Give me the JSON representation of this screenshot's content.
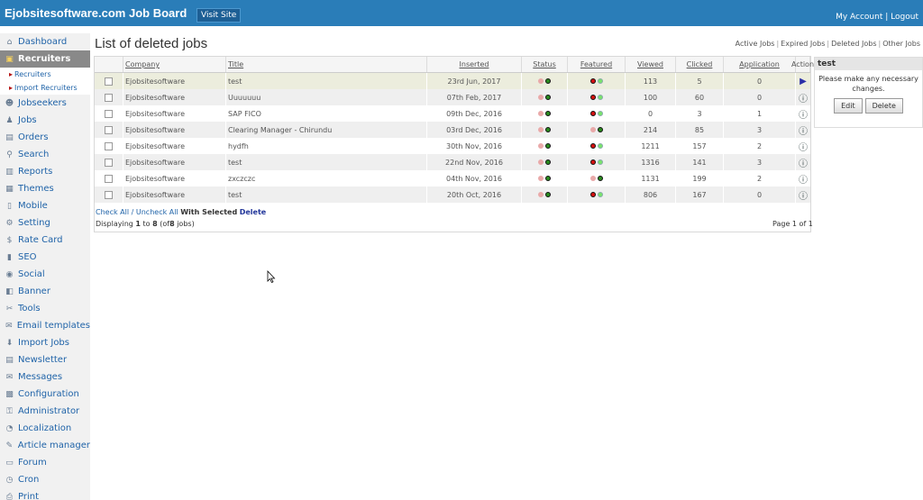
{
  "header": {
    "brand": "Ejobsitesoftware.com Job Board",
    "visit_site": "Visit Site",
    "my_account": "My Account",
    "separator": "|",
    "logout": "Logout"
  },
  "sidebar": {
    "items": [
      {
        "label": "Dashboard",
        "icon": "home-icon",
        "glyph": "⌂"
      },
      {
        "label": "Recruiters",
        "icon": "recruiter-icon",
        "glyph": "▣",
        "active": true
      },
      {
        "label": "Jobseekers",
        "icon": "jobseekers-icon",
        "glyph": "☻"
      },
      {
        "label": "Jobs",
        "icon": "jobs-icon",
        "glyph": "♟"
      },
      {
        "label": "Orders",
        "icon": "orders-icon",
        "glyph": "▤"
      },
      {
        "label": "Search",
        "icon": "search-icon",
        "glyph": "⚲"
      },
      {
        "label": "Reports",
        "icon": "reports-icon",
        "glyph": "▥"
      },
      {
        "label": "Themes",
        "icon": "themes-icon",
        "glyph": "▦"
      },
      {
        "label": "Mobile",
        "icon": "mobile-icon",
        "glyph": "▯"
      },
      {
        "label": "Setting",
        "icon": "setting-icon",
        "glyph": "⚙"
      },
      {
        "label": "Rate Card",
        "icon": "dollar-icon",
        "glyph": "$"
      },
      {
        "label": "SEO",
        "icon": "seo-icon",
        "glyph": "▮"
      },
      {
        "label": "Social",
        "icon": "social-icon",
        "glyph": "◉"
      },
      {
        "label": "Banner",
        "icon": "banner-icon",
        "glyph": "◧"
      },
      {
        "label": "Tools",
        "icon": "tools-icon",
        "glyph": "✂"
      },
      {
        "label": "Email templates",
        "icon": "email-icon",
        "glyph": "✉"
      },
      {
        "label": "Import Jobs",
        "icon": "import-icon",
        "glyph": "⬇"
      },
      {
        "label": "Newsletter",
        "icon": "newsletter-icon",
        "glyph": "▤"
      },
      {
        "label": "Messages",
        "icon": "messages-icon",
        "glyph": "✉"
      },
      {
        "label": "Configuration",
        "icon": "configuration-icon",
        "glyph": "▩"
      },
      {
        "label": "Administrator",
        "icon": "administrator-icon",
        "glyph": "⚿"
      },
      {
        "label": "Localization",
        "icon": "localization-icon",
        "glyph": "◔"
      },
      {
        "label": "Article manager",
        "icon": "article-icon",
        "glyph": "✎"
      },
      {
        "label": "Forum",
        "icon": "forum-icon",
        "glyph": "▭"
      },
      {
        "label": "Cron",
        "icon": "clock-icon",
        "glyph": "◷"
      },
      {
        "label": "Print",
        "icon": "print-icon",
        "glyph": "⎙"
      }
    ],
    "subitems": [
      "Recruiters",
      "Import Recruiters"
    ]
  },
  "page": {
    "title": "List of deleted jobs",
    "links": [
      "Active Jobs",
      "Expired Jobs",
      "Deleted Jobs",
      "Other Jobs"
    ]
  },
  "table": {
    "headers": [
      "Company",
      "Title",
      "Inserted",
      "Status",
      "Featured",
      "Viewed",
      "Clicked",
      "Application",
      "Action"
    ],
    "rows": [
      {
        "company": "Ejobsitesoftware",
        "title": "test",
        "inserted": "23rd Jun, 2017",
        "viewed": "113",
        "clicked": "5",
        "application": "0",
        "status_on": true,
        "featured_on": false,
        "action": "play"
      },
      {
        "company": "Ejobsitesoftware",
        "title": "Uuuuuuu",
        "inserted": "07th Feb, 2017",
        "viewed": "100",
        "clicked": "60",
        "application": "0",
        "status_on": true,
        "featured_on": false,
        "action": "info"
      },
      {
        "company": "Ejobsitesoftware",
        "title": "SAP FICO",
        "inserted": "09th Dec, 2016",
        "viewed": "0",
        "clicked": "3",
        "application": "1",
        "status_on": true,
        "featured_on": false,
        "action": "info"
      },
      {
        "company": "Ejobsitesoftware",
        "title": "Clearing Manager - Chirundu",
        "inserted": "03rd Dec, 2016",
        "viewed": "214",
        "clicked": "85",
        "application": "3",
        "status_on": true,
        "featured_on": true,
        "action": "info"
      },
      {
        "company": "Ejobsitesoftware",
        "title": "hydfh",
        "inserted": "30th Nov, 2016",
        "viewed": "1211",
        "clicked": "157",
        "application": "2",
        "status_on": true,
        "featured_on": false,
        "action": "info"
      },
      {
        "company": "Ejobsitesoftware",
        "title": "test",
        "inserted": "22nd Nov, 2016",
        "viewed": "1316",
        "clicked": "141",
        "application": "3",
        "status_on": true,
        "featured_on": false,
        "action": "info"
      },
      {
        "company": "Ejobsitesoftware",
        "title": "zxczczc",
        "inserted": "04th Nov, 2016",
        "viewed": "1131",
        "clicked": "199",
        "application": "2",
        "status_on": true,
        "featured_on": true,
        "action": "info"
      },
      {
        "company": "Ejobsitesoftware",
        "title": "test",
        "inserted": "20th Oct, 2016",
        "viewed": "806",
        "clicked": "167",
        "application": "0",
        "status_on": true,
        "featured_on": false,
        "action": "info"
      }
    ]
  },
  "footer": {
    "check_all": "Check All",
    "slash": "/",
    "uncheck_all": "Uncheck All",
    "with_selected": "With Selected",
    "delete": "Delete",
    "displaying_pre": "Displaying",
    "from": "1",
    "to_word": "to",
    "to": "8",
    "of_pre": "(of",
    "total": "8",
    "of_post": "jobs)",
    "page": "Page 1 of 1"
  },
  "side_panel": {
    "title": "test",
    "message": "Please make any necessary changes.",
    "edit": "Edit",
    "delete": "Delete"
  },
  "colors": {
    "header_bg": "#2a7db8",
    "active_nav": "#898989",
    "link": "#1f63a8"
  }
}
